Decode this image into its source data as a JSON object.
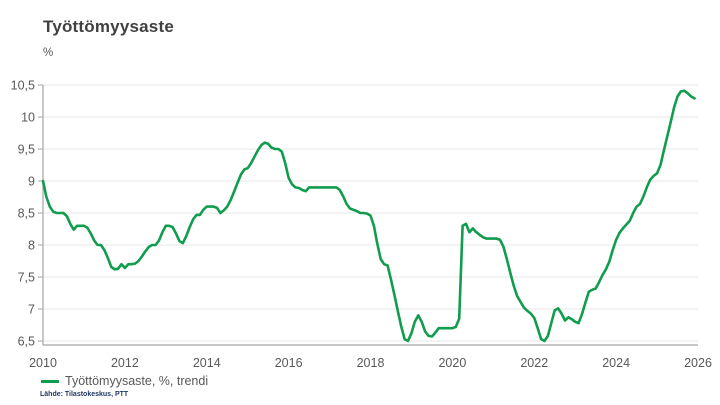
{
  "header": {
    "title": "Työttömyysaste",
    "unit": "%"
  },
  "legend": {
    "label": "Työttömyysaste, %, trendi"
  },
  "source": {
    "text": "Lähde: Tilastokeskus, PTT"
  },
  "colors": {
    "background": "#ffffff",
    "line": "#119c4e",
    "title": "#404040",
    "label": "#595959",
    "grid": "#e7e7e7",
    "axis": "#a3a3a3",
    "source": "#1f3864"
  },
  "chart_data": {
    "type": "line",
    "title": "Työttömyysaste",
    "ylabel": "%",
    "xlabel": "",
    "xlim": [
      2010,
      2026
    ],
    "ylim": [
      6.5,
      10.5
    ],
    "grid": "horizontal",
    "legend_position": "bottom-left",
    "y_ticks": [
      {
        "value": 10.5,
        "label": "10,5"
      },
      {
        "value": 10,
        "label": "10"
      },
      {
        "value": 9.5,
        "label": "9,5"
      },
      {
        "value": 9,
        "label": "9"
      },
      {
        "value": 8.5,
        "label": "8,5"
      },
      {
        "value": 8,
        "label": "8"
      },
      {
        "value": 7.5,
        "label": "7,5"
      },
      {
        "value": 7,
        "label": "7"
      },
      {
        "value": 6.5,
        "label": "6,5"
      }
    ],
    "x_ticks": [
      {
        "value": 2010,
        "label": "2010"
      },
      {
        "value": 2012,
        "label": "2012"
      },
      {
        "value": 2014,
        "label": "2014"
      },
      {
        "value": 2016,
        "label": "2016"
      },
      {
        "value": 2018,
        "label": "2018"
      },
      {
        "value": 2020,
        "label": "2020"
      },
      {
        "value": 2022,
        "label": "2022"
      },
      {
        "value": 2024,
        "label": "2024"
      },
      {
        "value": 2026,
        "label": "2026"
      }
    ],
    "series": [
      {
        "name": "Työttömyysaste, %, trendi",
        "color": "#119c4e",
        "start": "2010-01",
        "frequency": "monthly",
        "values": [
          9.0,
          8.75,
          8.6,
          8.52,
          8.5,
          8.5,
          8.5,
          8.45,
          8.33,
          8.24,
          8.3,
          8.3,
          8.3,
          8.27,
          8.18,
          8.07,
          8.0,
          8.0,
          7.92,
          7.8,
          7.66,
          7.62,
          7.63,
          7.7,
          7.64,
          7.7,
          7.7,
          7.71,
          7.75,
          7.82,
          7.9,
          7.97,
          8.0,
          8.0,
          8.07,
          8.2,
          8.3,
          8.3,
          8.28,
          8.18,
          8.06,
          8.03,
          8.14,
          8.28,
          8.4,
          8.47,
          8.47,
          8.55,
          8.6,
          8.6,
          8.6,
          8.58,
          8.5,
          8.54,
          8.6,
          8.7,
          8.83,
          8.97,
          9.1,
          9.18,
          9.2,
          9.28,
          9.38,
          9.48,
          9.56,
          9.6,
          9.58,
          9.52,
          9.5,
          9.5,
          9.46,
          9.28,
          9.05,
          8.95,
          8.9,
          8.89,
          8.86,
          8.84,
          8.9,
          8.9,
          8.9,
          8.9,
          8.9,
          8.9,
          8.9,
          8.9,
          8.9,
          8.86,
          8.76,
          8.64,
          8.57,
          8.55,
          8.53,
          8.5,
          8.5,
          8.49,
          8.46,
          8.3,
          8.02,
          7.78,
          7.7,
          7.68,
          7.46,
          7.22,
          6.97,
          6.73,
          6.53,
          6.5,
          6.62,
          6.8,
          6.9,
          6.8,
          6.65,
          6.58,
          6.57,
          6.63,
          6.7,
          6.7,
          6.7,
          6.7,
          6.7,
          6.72,
          6.85,
          8.3,
          8.33,
          8.2,
          8.26,
          8.2,
          8.16,
          8.12,
          8.1,
          8.1,
          8.1,
          8.1,
          8.08,
          7.97,
          7.77,
          7.56,
          7.36,
          7.2,
          7.11,
          7.02,
          6.97,
          6.93,
          6.86,
          6.7,
          6.53,
          6.5,
          6.58,
          6.78,
          6.98,
          7.01,
          6.93,
          6.82,
          6.87,
          6.84,
          6.8,
          6.78,
          6.92,
          7.1,
          7.27,
          7.3,
          7.32,
          7.42,
          7.53,
          7.62,
          7.74,
          7.92,
          8.08,
          8.19,
          8.26,
          8.32,
          8.38,
          8.5,
          8.6,
          8.64,
          8.76,
          8.9,
          9.02,
          9.08,
          9.12,
          9.25,
          9.48,
          9.7,
          9.92,
          10.15,
          10.32,
          10.4,
          10.41,
          10.37,
          10.32,
          10.29
        ]
      }
    ]
  }
}
